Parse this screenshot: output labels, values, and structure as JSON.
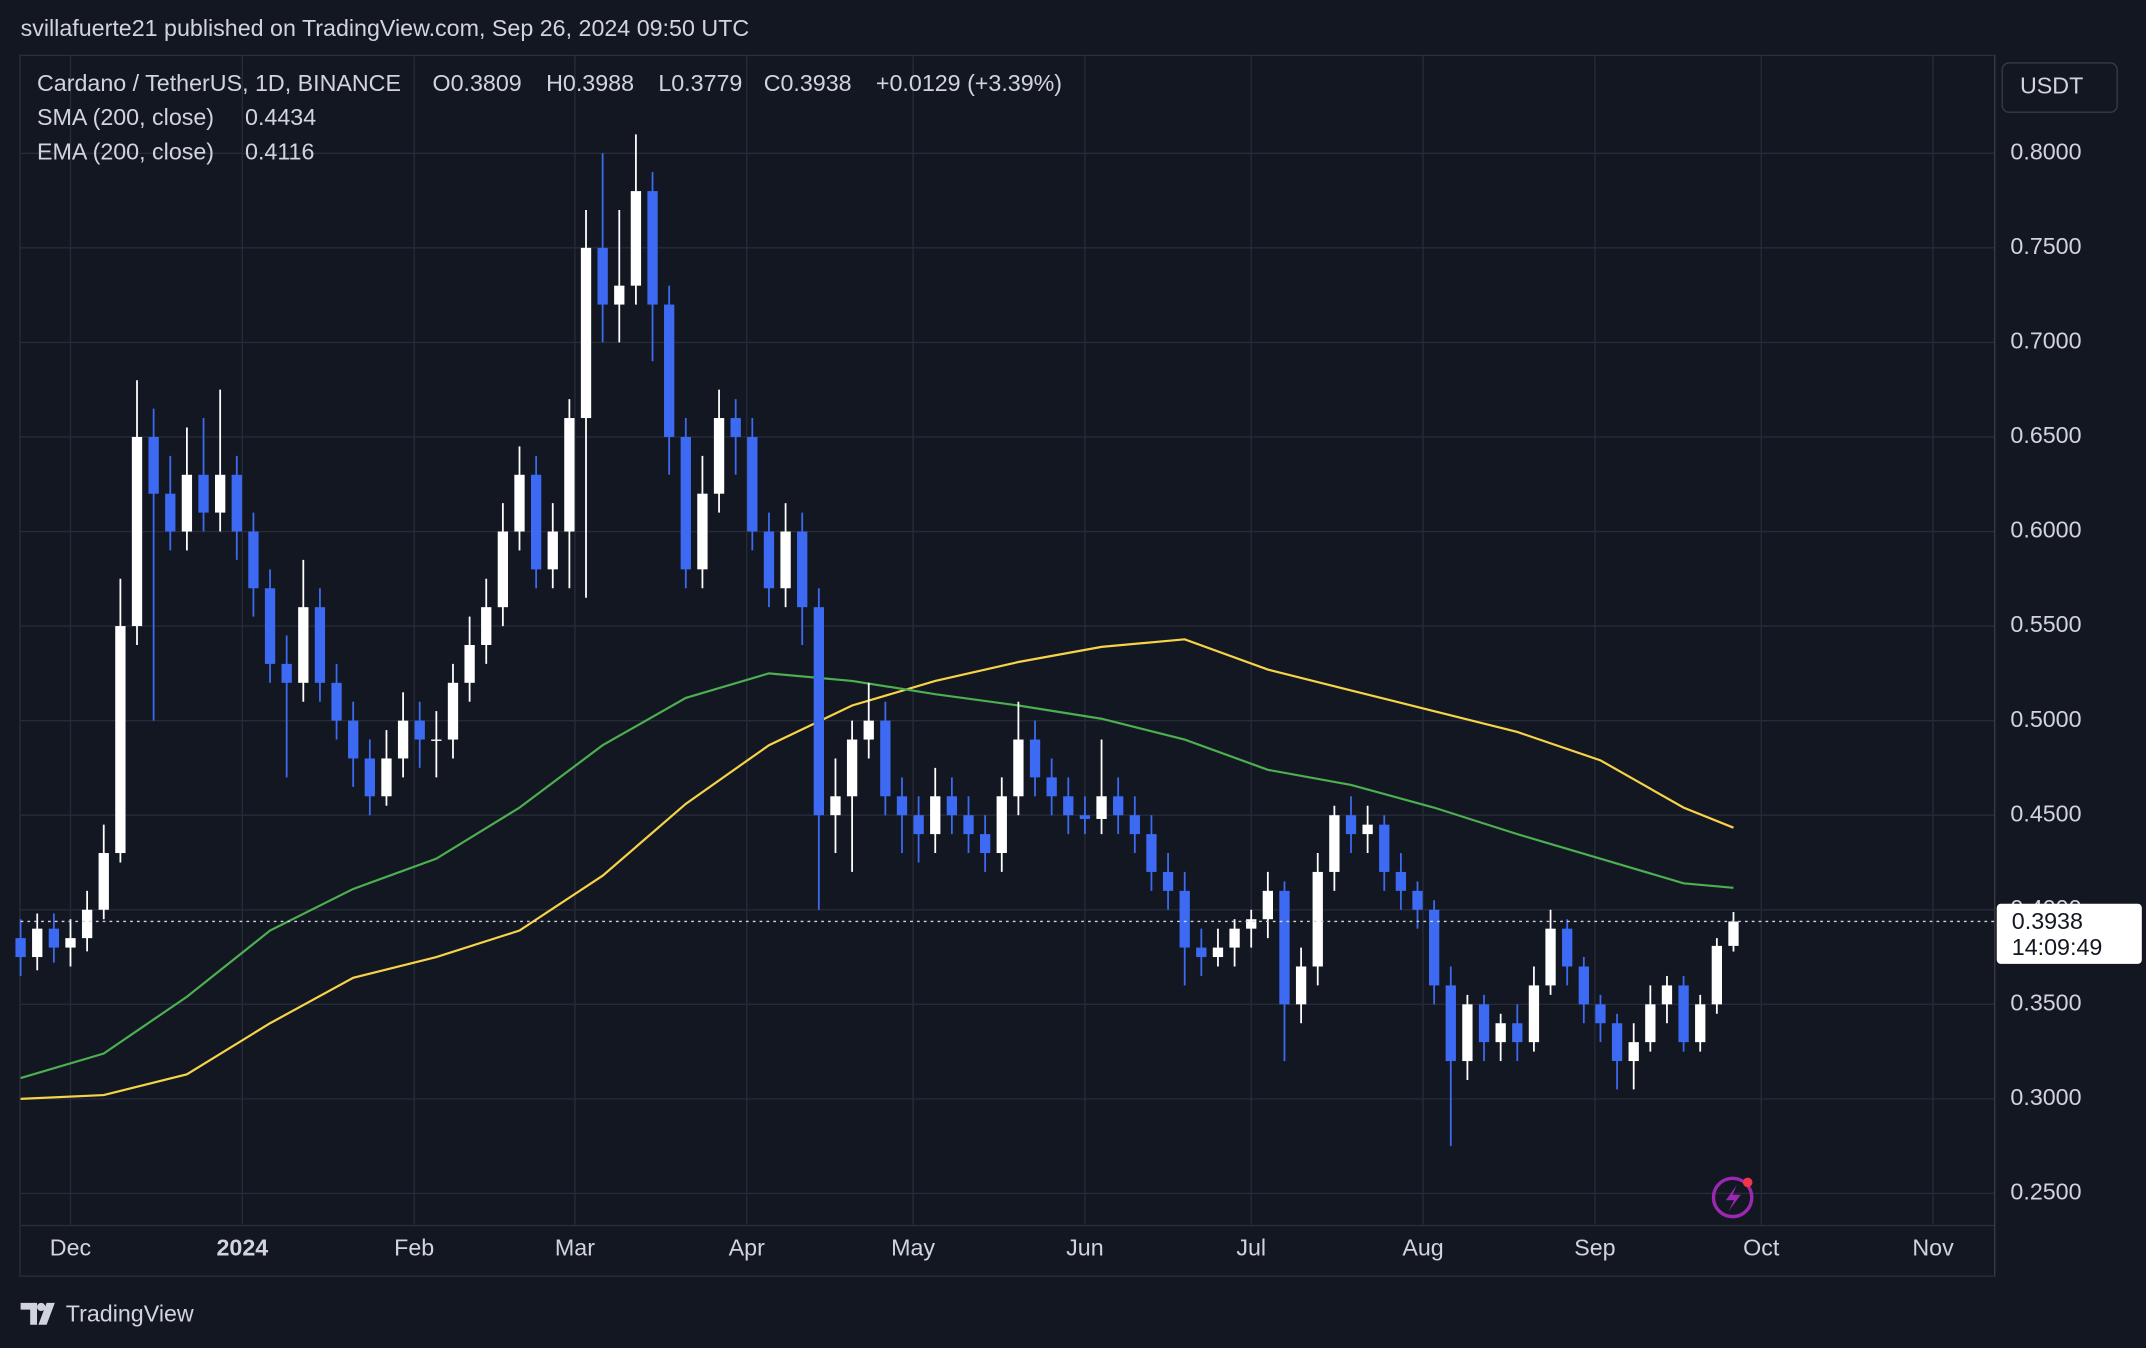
{
  "header": {
    "publisher": "svillafuerte21 published on TradingView.com, Sep 26, 2024 09:50 UTC",
    "brand": "TradingView"
  },
  "chart_data": {
    "type": "candlestick",
    "symbol": "Cardano / TetherUS, 1D, BINANCE",
    "ohlc_labels": [
      "O0.3809",
      "H0.3988",
      "L0.3779",
      "C0.3938",
      "+0.0129 (+3.39%)"
    ],
    "currency": "USDT",
    "countdown": "14:09:49",
    "up_color": "#ffffff",
    "down_color": "#3d6af2",
    "xlim": [
      0,
      356
    ],
    "xticks": [
      {
        "value": 9,
        "label": "Dec"
      },
      {
        "value": 40,
        "label": "2024"
      },
      {
        "value": 71,
        "label": "Feb"
      },
      {
        "value": 100,
        "label": "Mar"
      },
      {
        "value": 131,
        "label": "Apr"
      },
      {
        "value": 161,
        "label": "May"
      },
      {
        "value": 192,
        "label": "Jun"
      },
      {
        "value": 222,
        "label": "Jul"
      },
      {
        "value": 253,
        "label": "Aug"
      },
      {
        "value": 284,
        "label": "Sep"
      },
      {
        "value": 314,
        "label": "Oct"
      },
      {
        "value": 345,
        "label": "Nov"
      }
    ],
    "ylim": [
      0.2334,
      0.8521
    ],
    "yticks": [
      {
        "value": 0.25,
        "label": "0.2500"
      },
      {
        "value": 0.3,
        "label": "0.3000"
      },
      {
        "value": 0.35,
        "label": "0.3500"
      },
      {
        "value": 0.4,
        "label": "0.4000"
      },
      {
        "value": 0.45,
        "label": "0.4500"
      },
      {
        "value": 0.5,
        "label": "0.5000"
      },
      {
        "value": 0.55,
        "label": "0.5500"
      },
      {
        "value": 0.6,
        "label": "0.6000"
      },
      {
        "value": 0.65,
        "label": "0.6500"
      },
      {
        "value": 0.7,
        "label": "0.7000"
      },
      {
        "value": 0.75,
        "label": "0.7500"
      },
      {
        "value": 0.8,
        "label": "0.8000"
      }
    ],
    "grid": true,
    "x": [
      0,
      3,
      6,
      9,
      12,
      15,
      18,
      21,
      24,
      27,
      30,
      33,
      36,
      39,
      42,
      45,
      48,
      51,
      54,
      57,
      60,
      63,
      66,
      69,
      72,
      75,
      78,
      81,
      84,
      87,
      90,
      93,
      96,
      99,
      102,
      105,
      108,
      111,
      114,
      117,
      120,
      123,
      126,
      129,
      132,
      135,
      138,
      141,
      144,
      147,
      150,
      153,
      156,
      159,
      162,
      165,
      168,
      171,
      174,
      177,
      180,
      183,
      186,
      189,
      192,
      195,
      198,
      201,
      204,
      207,
      210,
      213,
      216,
      219,
      222,
      225,
      228,
      231,
      234,
      237,
      240,
      243,
      246,
      249,
      252,
      255,
      258,
      261,
      264,
      267,
      270,
      273,
      276,
      279,
      282,
      285,
      288,
      291,
      294,
      297,
      300,
      303,
      306,
      309
    ],
    "ohlc": [
      [
        0.385,
        0.395,
        0.365,
        0.375
      ],
      [
        0.375,
        0.398,
        0.368,
        0.39
      ],
      [
        0.39,
        0.398,
        0.372,
        0.38
      ],
      [
        0.38,
        0.395,
        0.37,
        0.385
      ],
      [
        0.385,
        0.41,
        0.378,
        0.4
      ],
      [
        0.4,
        0.445,
        0.395,
        0.43
      ],
      [
        0.43,
        0.575,
        0.425,
        0.55
      ],
      [
        0.55,
        0.68,
        0.54,
        0.65
      ],
      [
        0.65,
        0.665,
        0.5,
        0.62
      ],
      [
        0.62,
        0.64,
        0.59,
        0.6
      ],
      [
        0.6,
        0.655,
        0.59,
        0.63
      ],
      [
        0.63,
        0.66,
        0.6,
        0.61
      ],
      [
        0.61,
        0.675,
        0.6,
        0.63
      ],
      [
        0.63,
        0.64,
        0.585,
        0.6
      ],
      [
        0.6,
        0.61,
        0.555,
        0.57
      ],
      [
        0.57,
        0.58,
        0.52,
        0.53
      ],
      [
        0.53,
        0.545,
        0.47,
        0.52
      ],
      [
        0.52,
        0.585,
        0.51,
        0.56
      ],
      [
        0.56,
        0.57,
        0.51,
        0.52
      ],
      [
        0.52,
        0.53,
        0.49,
        0.5
      ],
      [
        0.5,
        0.51,
        0.465,
        0.48
      ],
      [
        0.48,
        0.49,
        0.45,
        0.46
      ],
      [
        0.46,
        0.495,
        0.455,
        0.48
      ],
      [
        0.48,
        0.515,
        0.47,
        0.5
      ],
      [
        0.5,
        0.51,
        0.475,
        0.49
      ],
      [
        0.49,
        0.505,
        0.47,
        0.49
      ],
      [
        0.49,
        0.53,
        0.48,
        0.52
      ],
      [
        0.52,
        0.555,
        0.51,
        0.54
      ],
      [
        0.54,
        0.575,
        0.53,
        0.56
      ],
      [
        0.56,
        0.615,
        0.55,
        0.6
      ],
      [
        0.6,
        0.645,
        0.59,
        0.63
      ],
      [
        0.63,
        0.64,
        0.57,
        0.58
      ],
      [
        0.58,
        0.615,
        0.57,
        0.6
      ],
      [
        0.6,
        0.67,
        0.57,
        0.66
      ],
      [
        0.66,
        0.77,
        0.565,
        0.75
      ],
      [
        0.75,
        0.8,
        0.7,
        0.72
      ],
      [
        0.72,
        0.77,
        0.7,
        0.73
      ],
      [
        0.73,
        0.81,
        0.72,
        0.78
      ],
      [
        0.78,
        0.79,
        0.69,
        0.72
      ],
      [
        0.72,
        0.73,
        0.63,
        0.65
      ],
      [
        0.65,
        0.66,
        0.57,
        0.58
      ],
      [
        0.58,
        0.64,
        0.57,
        0.62
      ],
      [
        0.62,
        0.675,
        0.61,
        0.66
      ],
      [
        0.66,
        0.67,
        0.63,
        0.65
      ],
      [
        0.65,
        0.66,
        0.59,
        0.6
      ],
      [
        0.6,
        0.61,
        0.56,
        0.57
      ],
      [
        0.57,
        0.615,
        0.56,
        0.6
      ],
      [
        0.6,
        0.61,
        0.54,
        0.56
      ],
      [
        0.56,
        0.57,
        0.4,
        0.45
      ],
      [
        0.45,
        0.48,
        0.43,
        0.46
      ],
      [
        0.46,
        0.5,
        0.42,
        0.49
      ],
      [
        0.49,
        0.52,
        0.48,
        0.5
      ],
      [
        0.5,
        0.51,
        0.45,
        0.46
      ],
      [
        0.46,
        0.47,
        0.43,
        0.45
      ],
      [
        0.45,
        0.46,
        0.425,
        0.44
      ],
      [
        0.44,
        0.475,
        0.43,
        0.46
      ],
      [
        0.46,
        0.47,
        0.44,
        0.45
      ],
      [
        0.45,
        0.46,
        0.43,
        0.44
      ],
      [
        0.44,
        0.45,
        0.42,
        0.43
      ],
      [
        0.43,
        0.47,
        0.42,
        0.46
      ],
      [
        0.46,
        0.51,
        0.45,
        0.49
      ],
      [
        0.49,
        0.5,
        0.46,
        0.47
      ],
      [
        0.47,
        0.48,
        0.45,
        0.46
      ],
      [
        0.46,
        0.47,
        0.44,
        0.45
      ],
      [
        0.45,
        0.46,
        0.44,
        0.448
      ],
      [
        0.448,
        0.49,
        0.44,
        0.46
      ],
      [
        0.46,
        0.47,
        0.44,
        0.45
      ],
      [
        0.45,
        0.46,
        0.43,
        0.44
      ],
      [
        0.44,
        0.45,
        0.41,
        0.42
      ],
      [
        0.42,
        0.43,
        0.4,
        0.41
      ],
      [
        0.41,
        0.42,
        0.36,
        0.38
      ],
      [
        0.38,
        0.39,
        0.365,
        0.375
      ],
      [
        0.375,
        0.39,
        0.37,
        0.38
      ],
      [
        0.38,
        0.395,
        0.37,
        0.39
      ],
      [
        0.39,
        0.4,
        0.38,
        0.395
      ],
      [
        0.395,
        0.42,
        0.385,
        0.41
      ],
      [
        0.41,
        0.415,
        0.32,
        0.35
      ],
      [
        0.35,
        0.38,
        0.34,
        0.37
      ],
      [
        0.37,
        0.43,
        0.36,
        0.42
      ],
      [
        0.42,
        0.455,
        0.41,
        0.45
      ],
      [
        0.45,
        0.46,
        0.43,
        0.44
      ],
      [
        0.44,
        0.455,
        0.43,
        0.445
      ],
      [
        0.445,
        0.45,
        0.41,
        0.42
      ],
      [
        0.42,
        0.43,
        0.4,
        0.41
      ],
      [
        0.41,
        0.415,
        0.39,
        0.4
      ],
      [
        0.4,
        0.405,
        0.35,
        0.36
      ],
      [
        0.36,
        0.37,
        0.275,
        0.32
      ],
      [
        0.32,
        0.355,
        0.31,
        0.35
      ],
      [
        0.35,
        0.355,
        0.32,
        0.33
      ],
      [
        0.33,
        0.345,
        0.32,
        0.34
      ],
      [
        0.34,
        0.35,
        0.32,
        0.33
      ],
      [
        0.33,
        0.37,
        0.325,
        0.36
      ],
      [
        0.36,
        0.4,
        0.355,
        0.39
      ],
      [
        0.39,
        0.395,
        0.36,
        0.37
      ],
      [
        0.37,
        0.375,
        0.34,
        0.35
      ],
      [
        0.35,
        0.355,
        0.33,
        0.34
      ],
      [
        0.34,
        0.345,
        0.305,
        0.32
      ],
      [
        0.32,
        0.34,
        0.305,
        0.33
      ],
      [
        0.33,
        0.36,
        0.325,
        0.35
      ],
      [
        0.35,
        0.365,
        0.34,
        0.36
      ],
      [
        0.36,
        0.365,
        0.325,
        0.33
      ],
      [
        0.33,
        0.355,
        0.325,
        0.35
      ],
      [
        0.35,
        0.385,
        0.345,
        0.3809
      ],
      [
        0.3809,
        0.3988,
        0.3779,
        0.3938
      ]
    ],
    "series": [
      {
        "name": "SMA (200, close)",
        "color": "#f7d348",
        "x": [
          0,
          15,
          30,
          45,
          60,
          75,
          90,
          105,
          120,
          135,
          150,
          165,
          180,
          195,
          210,
          225,
          240,
          255,
          270,
          285,
          300,
          309
        ],
        "values": [
          0.3,
          0.302,
          0.313,
          0.34,
          0.364,
          0.375,
          0.389,
          0.418,
          0.456,
          0.487,
          0.508,
          0.521,
          0.531,
          0.539,
          0.543,
          0.527,
          0.516,
          0.505,
          0.494,
          0.479,
          0.454,
          0.4434
        ]
      },
      {
        "name": "EMA (200, close)",
        "color": "#4caf50",
        "x": [
          0,
          15,
          30,
          45,
          60,
          75,
          90,
          105,
          120,
          135,
          150,
          165,
          180,
          195,
          210,
          225,
          240,
          255,
          270,
          285,
          300,
          309
        ],
        "values": [
          0.311,
          0.324,
          0.354,
          0.389,
          0.411,
          0.427,
          0.454,
          0.487,
          0.512,
          0.525,
          0.521,
          0.514,
          0.508,
          0.501,
          0.49,
          0.474,
          0.466,
          0.454,
          0.44,
          0.427,
          0.414,
          0.4116
        ]
      }
    ]
  }
}
